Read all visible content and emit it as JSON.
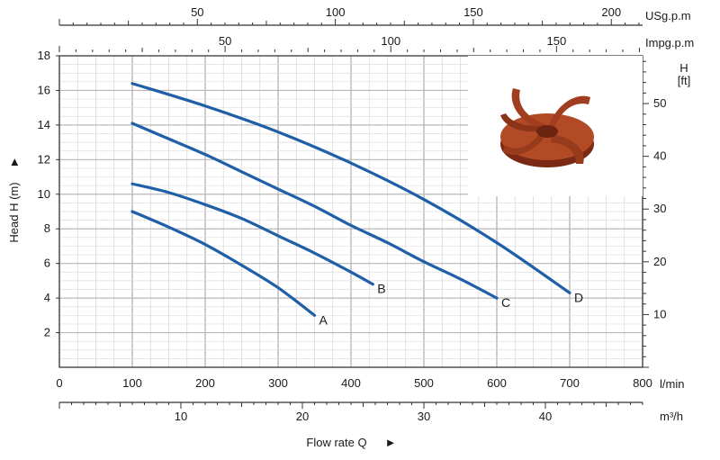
{
  "chart_data": {
    "type": "line",
    "ylabel": "Head H (m)",
    "xlabel": "Flow rate Q",
    "x_unit": "l/min",
    "xlim": [
      0,
      800
    ],
    "ylim": [
      0,
      18
    ],
    "y_ticks": [
      2,
      4,
      6,
      8,
      10,
      12,
      14,
      16,
      18
    ],
    "x_ticks": [
      0,
      100,
      200,
      300,
      400,
      500,
      600,
      700,
      800
    ],
    "secondary_axes": {
      "head_ft": {
        "label_line1": "H",
        "label_line2": "[ft]",
        "ticks": [
          10,
          20,
          30,
          40,
          50
        ]
      },
      "m3h": {
        "unit": "m³/h",
        "ticks": [
          10,
          20,
          30,
          40
        ]
      },
      "usgpm": {
        "unit": "USg.p.m",
        "ticks": [
          50,
          100,
          150,
          200
        ]
      },
      "impgpm": {
        "unit": "Impg.p.m",
        "ticks": [
          50,
          100,
          150
        ]
      }
    },
    "grid": true,
    "series_color": "#1f5fa8",
    "series": [
      {
        "name": "A",
        "x": [
          100,
          150,
          200,
          250,
          300,
          350
        ],
        "y": [
          9.0,
          8.1,
          7.1,
          5.9,
          4.6,
          3.0
        ]
      },
      {
        "name": "B",
        "x": [
          100,
          150,
          200,
          250,
          300,
          350,
          400,
          430
        ],
        "y": [
          10.6,
          10.1,
          9.4,
          8.6,
          7.6,
          6.6,
          5.5,
          4.8
        ]
      },
      {
        "name": "C",
        "x": [
          100,
          150,
          200,
          250,
          300,
          350,
          400,
          450,
          500,
          550,
          600
        ],
        "y": [
          14.1,
          13.2,
          12.3,
          11.3,
          10.3,
          9.3,
          8.2,
          7.2,
          6.1,
          5.1,
          4.0
        ]
      },
      {
        "name": "D",
        "x": [
          100,
          200,
          300,
          400,
          500,
          600,
          700
        ],
        "y": [
          16.4,
          15.1,
          13.6,
          11.8,
          9.7,
          7.2,
          4.3
        ]
      }
    ],
    "image_note_icon": "impeller-photo"
  }
}
